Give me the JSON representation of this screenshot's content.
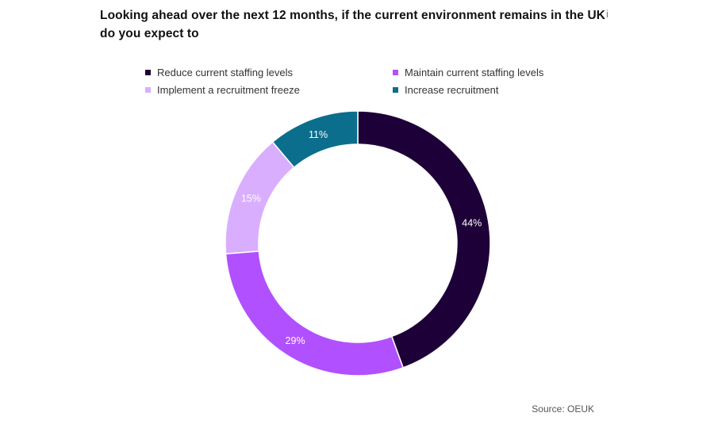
{
  "header": {
    "title": "Looking ahead over the next 12 months, if the current environment remains in the UK do you expect to",
    "info_glyph": "i"
  },
  "chart_data": {
    "type": "pie",
    "variant": "donut",
    "categories": [
      "Reduce current staffing levels",
      "Maintain current staffing levels",
      "Implement a recruitment freeze",
      "Increase recruitment"
    ],
    "values": [
      44,
      29,
      15,
      11
    ],
    "value_labels": [
      "44%",
      "29%",
      "15%",
      "11%"
    ],
    "colors": [
      "#1e0038",
      "#b150ff",
      "#d9aeff",
      "#0b6e8c"
    ],
    "legend_position": "top",
    "title": "Looking ahead over the next 12 months, if the current environment remains in the UK do you expect to"
  },
  "footer": {
    "source": "Source: OEUK"
  }
}
